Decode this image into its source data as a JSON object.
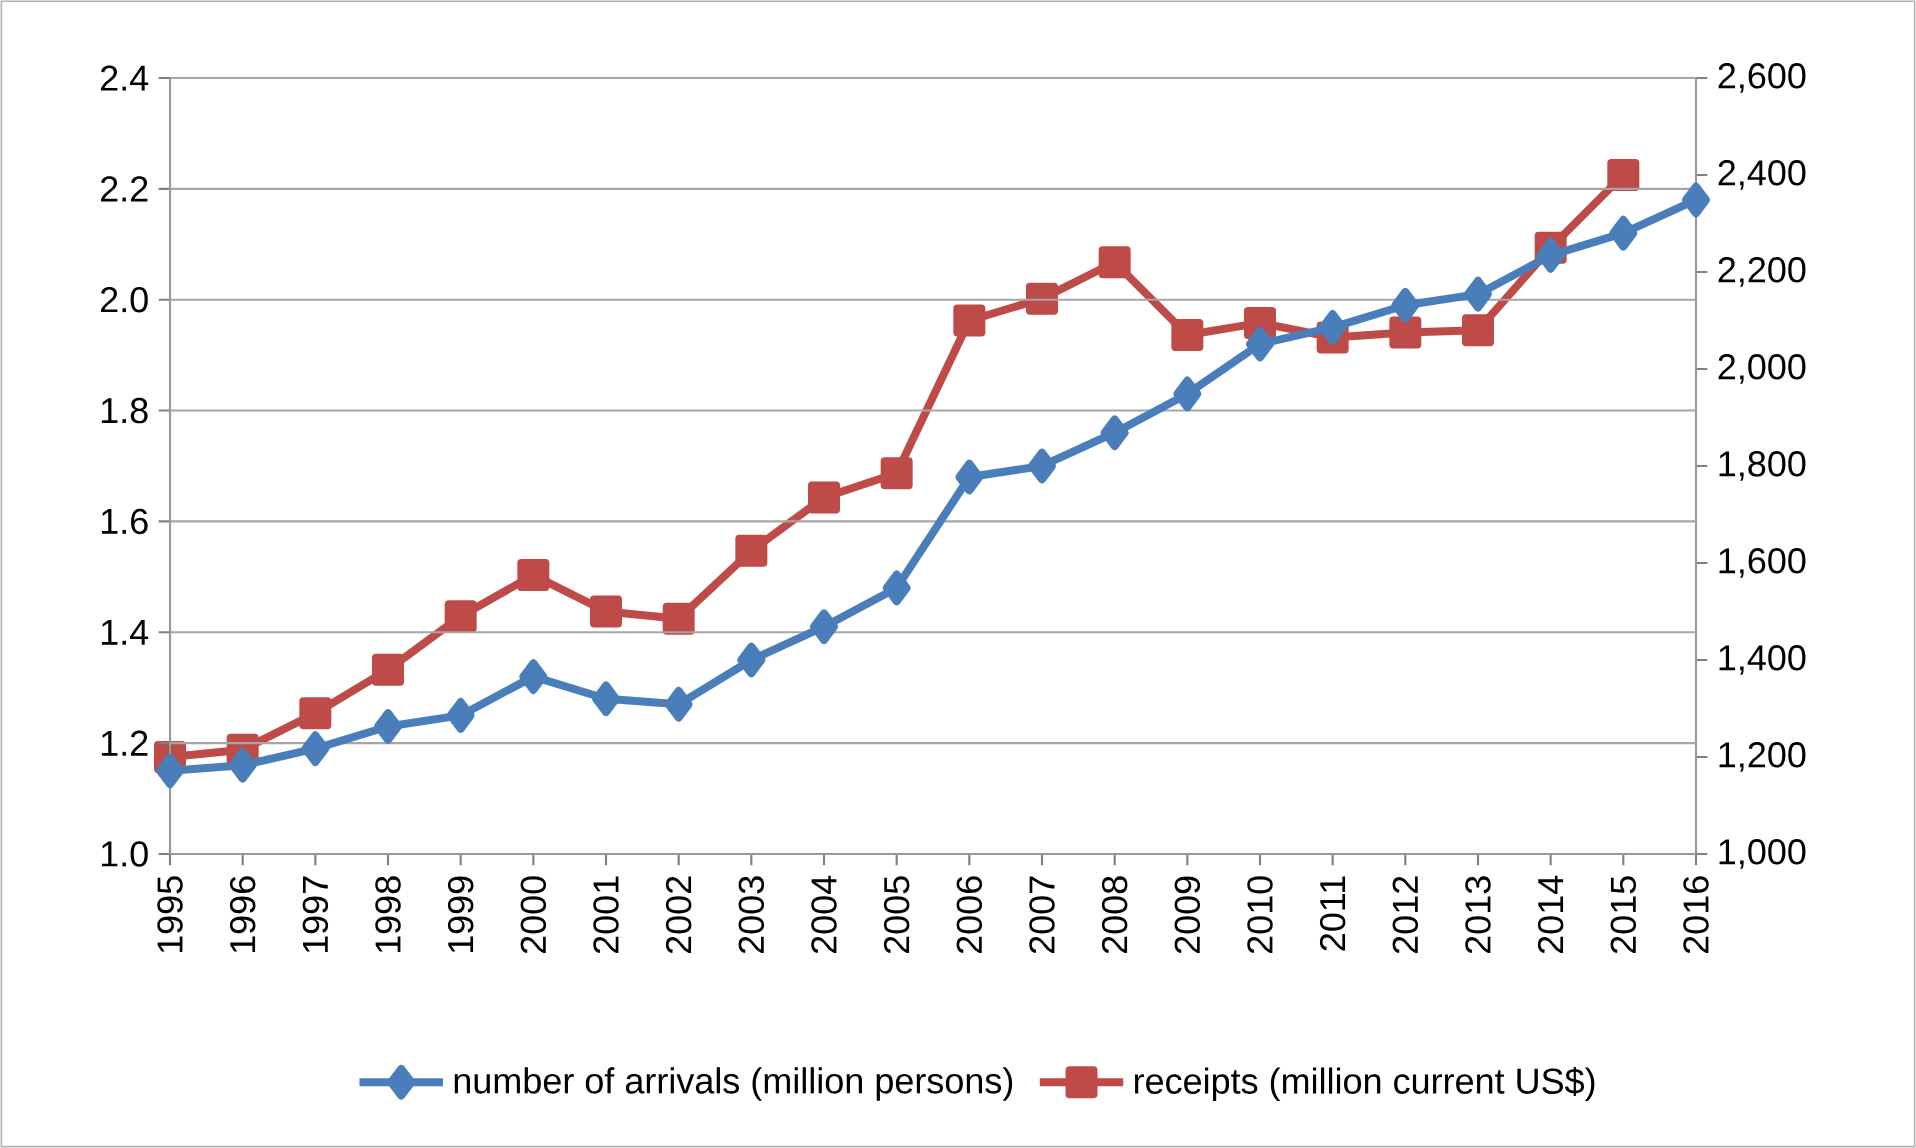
{
  "chart_data": {
    "type": "line",
    "categories": [
      "1995",
      "1996",
      "1997",
      "1998",
      "1999",
      "2000",
      "2001",
      "2002",
      "2003",
      "2004",
      "2005",
      "2006",
      "2007",
      "2008",
      "2009",
      "2010",
      "2011",
      "2012",
      "2013",
      "2014",
      "2015",
      "2016"
    ],
    "series": [
      {
        "name": "number of arrivals (million persons)",
        "color": "#4a7ebb",
        "marker": "diamond",
        "values": [
          1.15,
          1.16,
          1.19,
          1.23,
          1.25,
          1.32,
          1.28,
          1.27,
          1.35,
          1.41,
          1.48,
          1.68,
          1.7,
          1.76,
          1.83,
          1.92,
          1.95,
          1.99,
          2.01,
          2.08,
          2.12,
          2.18
        ]
      },
      {
        "name": "receipts (million current US$)",
        "color": "#be4b48",
        "marker": "square",
        "axis": "y2",
        "values": [
          1200,
          1215,
          1290,
          1380,
          1490,
          1575,
          1500,
          1485,
          1625,
          1735,
          1785,
          2100,
          2145,
          2220,
          2070,
          2095,
          2065,
          2075,
          2080,
          2250,
          2400,
          null
        ]
      }
    ],
    "ylim": [
      1.0,
      2.4
    ],
    "yticks": [
      {
        "value": 1.0,
        "label": "1.0"
      },
      {
        "value": 1.2,
        "label": "1.2"
      },
      {
        "value": 1.4,
        "label": "1.4"
      },
      {
        "value": 1.6,
        "label": "1.6"
      },
      {
        "value": 1.8,
        "label": "1.8"
      },
      {
        "value": 2.0,
        "label": "2.0"
      },
      {
        "value": 2.2,
        "label": "2.2"
      },
      {
        "value": 2.4,
        "label": "2.4"
      }
    ],
    "y2lim": [
      1000,
      2600
    ],
    "y2ticks": [
      {
        "value": 1000,
        "label": "1,000"
      },
      {
        "value": 1200,
        "label": "1,200"
      },
      {
        "value": 1400,
        "label": "1,400"
      },
      {
        "value": 1600,
        "label": "1,600"
      },
      {
        "value": 1800,
        "label": "1,800"
      },
      {
        "value": 2000,
        "label": "2,000"
      },
      {
        "value": 2200,
        "label": "2,200"
      },
      {
        "value": 2400,
        "label": "2,400"
      },
      {
        "value": 2600,
        "label": "2,600"
      }
    ],
    "grid": "y",
    "legend": "bottom",
    "line_style": "solid"
  }
}
